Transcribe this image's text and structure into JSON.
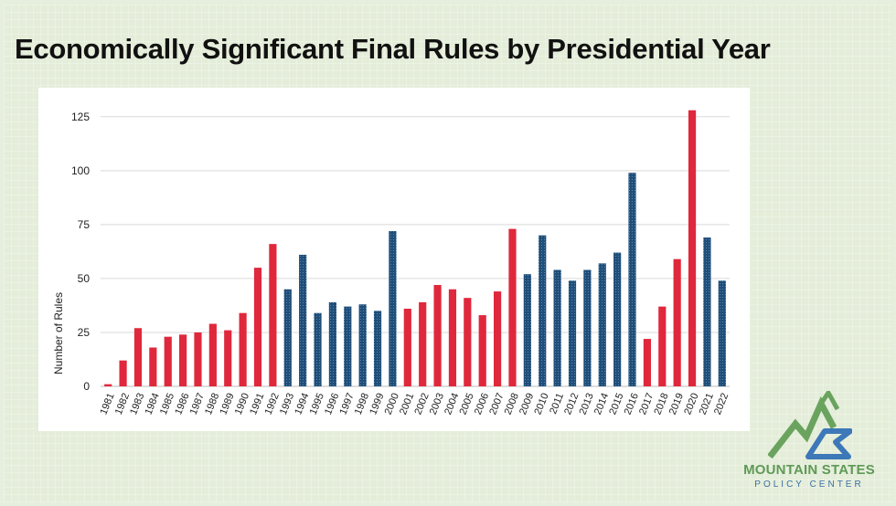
{
  "title": "Economically Significant Final Rules by Presidential Year",
  "logo": {
    "name_line1": "MOUNTAIN STATES",
    "name_line2": "POLICY CENTER",
    "green": "#6aa35e",
    "blue": "#3d78b8"
  },
  "chart_data": {
    "type": "bar",
    "title": "",
    "xlabel": "",
    "ylabel": "Number of Rules",
    "ylim": [
      0,
      130
    ],
    "yticks": [
      0,
      25,
      50,
      75,
      100,
      125
    ],
    "grid": true,
    "colors": {
      "red": "#e0283c",
      "blue": "#1f4e79"
    },
    "categories": [
      "1981",
      "1982",
      "1983",
      "1984",
      "1985",
      "1986",
      "1987",
      "1988",
      "1989",
      "1990",
      "1991",
      "1992",
      "1993",
      "1994",
      "1995",
      "1996",
      "1997",
      "1998",
      "1999",
      "2000",
      "2001",
      "2002",
      "2003",
      "2004",
      "2005",
      "2006",
      "2007",
      "2008",
      "2009",
      "2010",
      "2011",
      "2012",
      "2013",
      "2014",
      "2015",
      "2016",
      "2017",
      "2018",
      "2019",
      "2020",
      "2021",
      "2022"
    ],
    "values": [
      1,
      12,
      27,
      18,
      23,
      24,
      25,
      29,
      26,
      34,
      55,
      66,
      45,
      61,
      34,
      39,
      37,
      38,
      35,
      72,
      36,
      39,
      47,
      45,
      41,
      33,
      44,
      73,
      52,
      70,
      54,
      49,
      54,
      57,
      62,
      99,
      22,
      37,
      59,
      128,
      69,
      49
    ],
    "bar_colors": [
      "red",
      "red",
      "red",
      "red",
      "red",
      "red",
      "red",
      "red",
      "red",
      "red",
      "red",
      "red",
      "blue",
      "blue",
      "blue",
      "blue",
      "blue",
      "blue",
      "blue",
      "blue",
      "red",
      "red",
      "red",
      "red",
      "red",
      "red",
      "red",
      "red",
      "blue",
      "blue",
      "blue",
      "blue",
      "blue",
      "blue",
      "blue",
      "blue",
      "red",
      "red",
      "red",
      "red",
      "blue",
      "blue"
    ]
  }
}
